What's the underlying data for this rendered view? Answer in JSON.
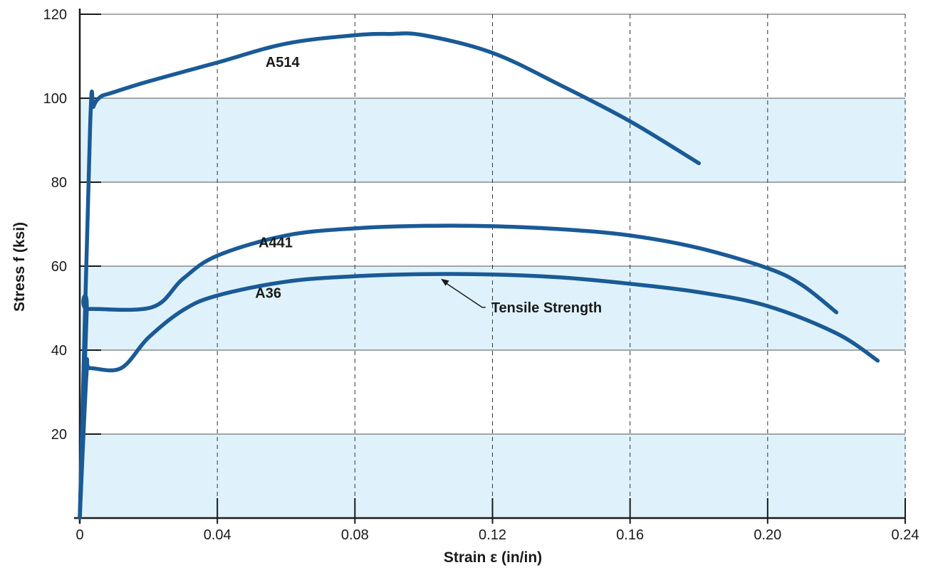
{
  "chart_data": {
    "type": "line",
    "title": "",
    "xlabel": "Strain ε (in/in)",
    "ylabel": "Stress f (ksi)",
    "xlim": [
      0,
      0.24
    ],
    "ylim": [
      0,
      120
    ],
    "x_ticks": [
      "0",
      "0.04",
      "0.08",
      "0.12",
      "0.16",
      "0.20",
      "0.24"
    ],
    "x_tick_values": [
      0,
      0.04,
      0.08,
      0.12,
      0.16,
      0.2,
      0.24
    ],
    "y_ticks": [
      "20",
      "40",
      "60",
      "80",
      "100",
      "120"
    ],
    "y_tick_values": [
      20,
      40,
      60,
      80,
      100,
      120
    ],
    "band_color": "#dff2fb",
    "band_ranges": [
      [
        0,
        20
      ],
      [
        40,
        60
      ],
      [
        80,
        100
      ]
    ],
    "line_color": "#1a5a96",
    "grid": {
      "horizontal": "solid",
      "vertical": "dashed"
    },
    "series": [
      {
        "name": "A514",
        "x": [
          0,
          0.003,
          0.004,
          0.006,
          0.009,
          0.02,
          0.04,
          0.06,
          0.08,
          0.09,
          0.1,
          0.12,
          0.14,
          0.16,
          0.18
        ],
        "y": [
          0,
          93,
          98,
          100.3,
          101.2,
          104,
          108.5,
          113,
          115,
          115.3,
          115,
          110.8,
          103,
          94.5,
          84.5
        ]
      },
      {
        "name": "A441",
        "x": [
          0,
          0.002,
          0.0025,
          0.021,
          0.03,
          0.04,
          0.06,
          0.08,
          0.1,
          0.12,
          0.14,
          0.16,
          0.18,
          0.2,
          0.21,
          0.22
        ],
        "y": [
          0,
          49,
          49.8,
          50.2,
          57,
          62.5,
          67.3,
          69,
          69.6,
          69.5,
          68.8,
          67.3,
          64.3,
          59.5,
          55.5,
          49
        ]
      },
      {
        "name": "A36",
        "x": [
          0,
          0.002,
          0.003,
          0.012,
          0.02,
          0.03,
          0.04,
          0.06,
          0.08,
          0.1,
          0.12,
          0.14,
          0.16,
          0.18,
          0.2,
          0.22,
          0.232
        ],
        "y": [
          0,
          35,
          35.7,
          35.7,
          43,
          49.5,
          53,
          56.3,
          57.6,
          58.1,
          58,
          57.3,
          55.8,
          53.8,
          50.5,
          44,
          37.5
        ]
      }
    ],
    "annotations": [
      {
        "text": "Tensile Strength",
        "x": 0.105,
        "y": 58
      }
    ]
  }
}
